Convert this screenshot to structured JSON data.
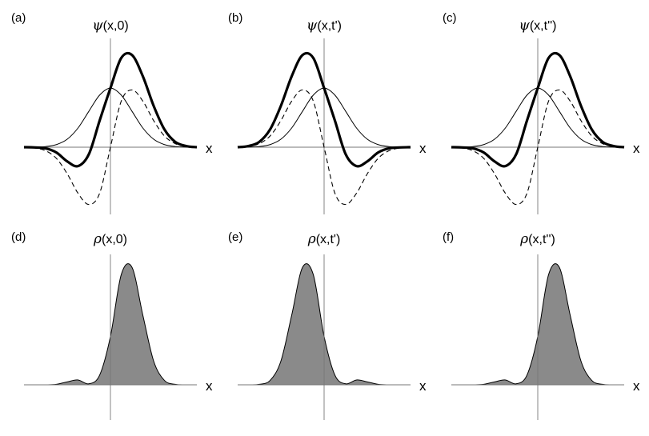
{
  "chart_data": [
    {
      "type": "line",
      "panel_label": "(a)",
      "title_symbol": "ψ",
      "title_args": "(x,0)",
      "xlabel": "x",
      "xlim": [
        -4,
        4
      ],
      "ylim": [
        -1.2,
        1.3
      ],
      "center": 0,
      "series": [
        {
          "style": "thin",
          "x": [
            -4,
            -3.5,
            -3,
            -2.5,
            -2,
            -1.5,
            -1,
            -0.5,
            0,
            0.5,
            1,
            1.5,
            2,
            2.5,
            3,
            3.5,
            4
          ],
          "y": [
            0,
            0.002,
            0.011,
            0.044,
            0.135,
            0.325,
            0.607,
            0.882,
            1,
            0.882,
            0.607,
            0.325,
            0.135,
            0.044,
            0.011,
            0.002,
            0
          ]
        },
        {
          "style": "dashed",
          "x": [
            -4,
            -3.5,
            -3,
            -2.5,
            -2,
            -1.5,
            -1,
            -0.5,
            0,
            0.5,
            1,
            1.5,
            2,
            2.5,
            3,
            3.5,
            4
          ],
          "y": [
            -0.001,
            -0.014,
            -0.06,
            -0.19,
            -0.45,
            -0.78,
            -0.97,
            -0.78,
            0,
            0.78,
            0.97,
            0.78,
            0.45,
            0.19,
            0.06,
            0.014,
            0.001
          ]
        },
        {
          "style": "thick",
          "x": [
            -4,
            -3.5,
            -3,
            -2.5,
            -2,
            -1.5,
            -1,
            -0.5,
            0,
            0.5,
            1,
            1.5,
            2,
            2.5,
            3,
            3.5,
            4
          ],
          "y": [
            0,
            -0.004,
            -0.02,
            -0.09,
            -0.24,
            -0.32,
            -0.12,
            0.45,
            1.0,
            1.51,
            1.56,
            1.2,
            0.7,
            0.3,
            0.09,
            0.02,
            0
          ]
        }
      ]
    },
    {
      "type": "line",
      "panel_label": "(b)",
      "title_symbol": "ψ",
      "title_args": "(x,t')",
      "xlabel": "x",
      "xlim": [
        -4,
        4
      ],
      "ylim": [
        -1.2,
        1.3
      ],
      "center": 0,
      "series": [
        {
          "style": "thin",
          "x": [
            -4,
            -3.5,
            -3,
            -2.5,
            -2,
            -1.5,
            -1,
            -0.5,
            0,
            0.5,
            1,
            1.5,
            2,
            2.5,
            3,
            3.5,
            4
          ],
          "y": [
            0,
            0.002,
            0.011,
            0.044,
            0.135,
            0.325,
            0.607,
            0.882,
            1,
            0.882,
            0.607,
            0.325,
            0.135,
            0.044,
            0.011,
            0.002,
            0
          ]
        },
        {
          "style": "dashed",
          "x": [
            -4,
            -3.5,
            -3,
            -2.5,
            -2,
            -1.5,
            -1,
            -0.5,
            0,
            0.5,
            1,
            1.5,
            2,
            2.5,
            3,
            3.5,
            4
          ],
          "y": [
            0.001,
            0.014,
            0.06,
            0.19,
            0.45,
            0.78,
            0.97,
            0.78,
            0,
            -0.78,
            -0.97,
            -0.78,
            -0.45,
            -0.19,
            -0.06,
            -0.014,
            -0.001
          ]
        },
        {
          "style": "thick",
          "x": [
            -4,
            -3.5,
            -3,
            -2.5,
            -2,
            -1.5,
            -1,
            -0.5,
            0,
            0.5,
            1,
            1.5,
            2,
            2.5,
            3,
            3.5,
            4
          ],
          "y": [
            0,
            0.02,
            0.09,
            0.3,
            0.7,
            1.2,
            1.56,
            1.51,
            1.0,
            0.45,
            -0.12,
            -0.32,
            -0.24,
            -0.09,
            -0.02,
            -0.004,
            0
          ]
        }
      ]
    },
    {
      "type": "line",
      "panel_label": "(c)",
      "title_symbol": "ψ",
      "title_args": "(x,t'')",
      "xlabel": "x",
      "xlim": [
        -4,
        4
      ],
      "ylim": [
        -1.2,
        1.3
      ],
      "center": 0,
      "series": [
        {
          "style": "thin",
          "x": [
            -4,
            -3.5,
            -3,
            -2.5,
            -2,
            -1.5,
            -1,
            -0.5,
            0,
            0.5,
            1,
            1.5,
            2,
            2.5,
            3,
            3.5,
            4
          ],
          "y": [
            0,
            0.002,
            0.011,
            0.044,
            0.135,
            0.325,
            0.607,
            0.882,
            1,
            0.882,
            0.607,
            0.325,
            0.135,
            0.044,
            0.011,
            0.002,
            0
          ]
        },
        {
          "style": "dashed",
          "x": [
            -4,
            -3.5,
            -3,
            -2.5,
            -2,
            -1.5,
            -1,
            -0.5,
            0,
            0.5,
            1,
            1.5,
            2,
            2.5,
            3,
            3.5,
            4
          ],
          "y": [
            -0.001,
            -0.014,
            -0.06,
            -0.19,
            -0.45,
            -0.78,
            -0.97,
            -0.78,
            0,
            0.78,
            0.97,
            0.78,
            0.45,
            0.19,
            0.06,
            0.014,
            0.001
          ]
        },
        {
          "style": "thick",
          "x": [
            -4,
            -3.5,
            -3,
            -2.5,
            -2,
            -1.5,
            -1,
            -0.5,
            0,
            0.5,
            1,
            1.5,
            2,
            2.5,
            3,
            3.5,
            4
          ],
          "y": [
            0,
            -0.004,
            -0.02,
            -0.09,
            -0.24,
            -0.32,
            -0.12,
            0.45,
            1.0,
            1.51,
            1.56,
            1.2,
            0.7,
            0.3,
            0.09,
            0.02,
            0
          ]
        }
      ]
    },
    {
      "type": "area",
      "panel_label": "(d)",
      "title_symbol": "ρ",
      "title_args": "(x,0)",
      "xlabel": "x",
      "xlim": [
        -4,
        4
      ],
      "ylim": [
        -0.35,
        2.5
      ],
      "center": 0,
      "series": [
        {
          "style": "filled",
          "x": [
            -4,
            -3.5,
            -3,
            -2.5,
            -2,
            -1.5,
            -1,
            -0.5,
            0,
            0.5,
            1,
            1.5,
            2,
            2.5,
            3,
            3.5,
            4
          ],
          "y": [
            0,
            0,
            0,
            0.01,
            0.06,
            0.1,
            0.02,
            0.2,
            1.0,
            2.28,
            2.43,
            1.44,
            0.49,
            0.09,
            0.01,
            0,
            0
          ]
        }
      ]
    },
    {
      "type": "area",
      "panel_label": "(e)",
      "title_symbol": "ρ",
      "title_args": "(x,t')",
      "xlabel": "x",
      "xlim": [
        -4,
        4
      ],
      "ylim": [
        -0.35,
        2.5
      ],
      "center": 0,
      "series": [
        {
          "style": "filled",
          "x": [
            -4,
            -3.5,
            -3,
            -2.5,
            -2,
            -1.5,
            -1,
            -0.5,
            0,
            0.5,
            1,
            1.5,
            2,
            2.5,
            3,
            3.5,
            4
          ],
          "y": [
            0,
            0,
            0.01,
            0.09,
            0.49,
            1.44,
            2.43,
            2.28,
            1.0,
            0.2,
            0.02,
            0.1,
            0.06,
            0.01,
            0,
            0,
            0
          ]
        }
      ]
    },
    {
      "type": "area",
      "panel_label": "(f)",
      "title_symbol": "ρ",
      "title_args": "(x,t'')",
      "xlabel": "x",
      "xlim": [
        -4,
        4
      ],
      "ylim": [
        -0.35,
        2.5
      ],
      "center": 0,
      "series": [
        {
          "style": "filled",
          "x": [
            -4,
            -3.5,
            -3,
            -2.5,
            -2,
            -1.5,
            -1,
            -0.5,
            0,
            0.5,
            1,
            1.5,
            2,
            2.5,
            3,
            3.5,
            4
          ],
          "y": [
            0,
            0,
            0,
            0.01,
            0.06,
            0.1,
            0.02,
            0.2,
            1.0,
            2.28,
            2.43,
            1.44,
            0.49,
            0.09,
            0.01,
            0,
            0
          ]
        }
      ]
    }
  ]
}
